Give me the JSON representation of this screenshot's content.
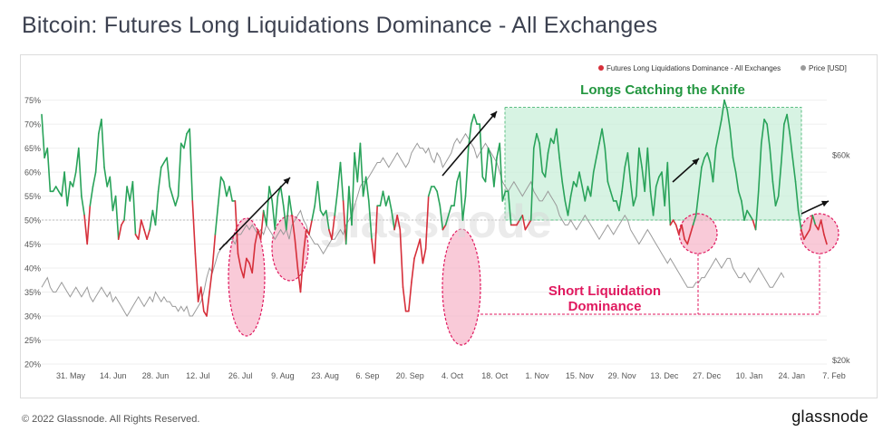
{
  "title": "Bitcoin: Futures Long Liquidations Dominance - All Exchanges",
  "footer": {
    "copyright": "© 2022 Glassnode. All Rights Reserved.",
    "brand": "glassnode"
  },
  "watermark": "glassnode",
  "colors": {
    "series_line": "#d62f3a",
    "long_line": "#29a35a",
    "price_line": "#9a9a9a",
    "highlight_green": "#c9efd9",
    "highlight_pink": "#f7b3c8",
    "annotation_green": "#22963f",
    "annotation_pink": "#e0195f"
  },
  "chart_data": {
    "type": "line",
    "x_ticks": [
      "31. May",
      "14. Jun",
      "28. Jun",
      "12. Jul",
      "26. Jul",
      "9. Aug",
      "23. Aug",
      "6. Sep",
      "20. Sep",
      "4. Oct",
      "18. Oct",
      "1. Nov",
      "15. Nov",
      "29. Nov",
      "13. Dec",
      "27. Dec",
      "10. Jan",
      "24. Jan",
      "7. Feb"
    ],
    "y_ticks": [
      "20%",
      "25%",
      "30%",
      "35%",
      "40%",
      "45%",
      "50%",
      "55%",
      "60%",
      "65%",
      "70%",
      "75%"
    ],
    "ylim": [
      20,
      77
    ],
    "threshold": 50,
    "y2_ticks": [
      "$20k",
      "$60k"
    ],
    "legend": [
      {
        "name": "Futures Long Liquidations Dominance - All Exchanges",
        "color": "#d62f3a"
      },
      {
        "name": "Price [USD]",
        "color": "#9a9a9a"
      }
    ],
    "series": [
      {
        "name": "Futures Long Liquidations Dominance - All Exchanges",
        "values": [
          72,
          63,
          65,
          56,
          56,
          57,
          56,
          55,
          60,
          53,
          58,
          57,
          60,
          65,
          55,
          51,
          45,
          53,
          57,
          60,
          68,
          71,
          61,
          57,
          59,
          52,
          55,
          46,
          49,
          50,
          57,
          54,
          58,
          47,
          46,
          50,
          48,
          46,
          48,
          52,
          49,
          56,
          61,
          62,
          63,
          57,
          55,
          53,
          55,
          66,
          65,
          68,
          69,
          54,
          43,
          33,
          36,
          31,
          30,
          35,
          40,
          47,
          53,
          59,
          58,
          55,
          57,
          54,
          54,
          43,
          40,
          38,
          42,
          41,
          39,
          45,
          48,
          46,
          52,
          49,
          57,
          54,
          48,
          55,
          57,
          53,
          48,
          55,
          51,
          46,
          40,
          35,
          43,
          48,
          47,
          50,
          53,
          58,
          52,
          51,
          52,
          48,
          46,
          51,
          56,
          62,
          54,
          45,
          57,
          49,
          64,
          58,
          66,
          55,
          59,
          54,
          46,
          41,
          53,
          53,
          56,
          53,
          55,
          52,
          48,
          51,
          48,
          36,
          31,
          31,
          37,
          42,
          44,
          46,
          41,
          44,
          55,
          57,
          57,
          56,
          53,
          48,
          49,
          51,
          53,
          53,
          58,
          60,
          50,
          55,
          65,
          70,
          72,
          70,
          70,
          59,
          58,
          65,
          63,
          57,
          63,
          66,
          54,
          56,
          56,
          49,
          49,
          49,
          50,
          51,
          48,
          49,
          50,
          65,
          68,
          66,
          60,
          59,
          64,
          67,
          66,
          69,
          63,
          58,
          54,
          51,
          55,
          58,
          57,
          60,
          57,
          54,
          57,
          55,
          60,
          63,
          66,
          69,
          65,
          58,
          56,
          54,
          54,
          52,
          56,
          61,
          64,
          58,
          53,
          55,
          65,
          61,
          56,
          65,
          56,
          51,
          57,
          59,
          60,
          53,
          62,
          49,
          50,
          49,
          47,
          49,
          46,
          45,
          47,
          49,
          51,
          56,
          61,
          63,
          64,
          62,
          58,
          65,
          68,
          71,
          75,
          73,
          69,
          63,
          60,
          56,
          54,
          50,
          52,
          51,
          50,
          48,
          56,
          66,
          71,
          70,
          65,
          58,
          53,
          55,
          62,
          70,
          72,
          68,
          63,
          58,
          52,
          48,
          46,
          47,
          48,
          51,
          49,
          48,
          50,
          47,
          45
        ]
      },
      {
        "name": "Price [USD]",
        "values": [
          36,
          37,
          38,
          36,
          35,
          35,
          36,
          37,
          36,
          35,
          34,
          35,
          36,
          35,
          34,
          35,
          36,
          34,
          33,
          34,
          35,
          36,
          35,
          34,
          35,
          33,
          34,
          33,
          32,
          31,
          30,
          31,
          32,
          33,
          34,
          33,
          32,
          33,
          34,
          33,
          35,
          34,
          33,
          34,
          33,
          33,
          32,
          32,
          31,
          32,
          31,
          32,
          30,
          30,
          31,
          32,
          33,
          35,
          38,
          40,
          39,
          41,
          43,
          44,
          45,
          45,
          46,
          46,
          45,
          47,
          47,
          48,
          49,
          48,
          49,
          48,
          47,
          48,
          47,
          49,
          48,
          47,
          46,
          47,
          48,
          47,
          48,
          46,
          49,
          50,
          51,
          52,
          50,
          49,
          47,
          46,
          45,
          45,
          44,
          43,
          44,
          45,
          46,
          46,
          47,
          48,
          47,
          49,
          50,
          51,
          53,
          55,
          57,
          58,
          58,
          59,
          60,
          61,
          62,
          62,
          63,
          62,
          61,
          62,
          63,
          64,
          63,
          62,
          61,
          62,
          64,
          65,
          66,
          65,
          65,
          64,
          65,
          63,
          62,
          64,
          63,
          61,
          62,
          63,
          64,
          66,
          67,
          66,
          67,
          68,
          67,
          66,
          65,
          63,
          64,
          65,
          66,
          65,
          64,
          63,
          62,
          60,
          58,
          57,
          56,
          57,
          58,
          57,
          56,
          55,
          56,
          57,
          58,
          56,
          55,
          54,
          54,
          55,
          56,
          55,
          54,
          53,
          51,
          50,
          49,
          49,
          50,
          49,
          48,
          49,
          50,
          51,
          50,
          49,
          48,
          47,
          46,
          47,
          48,
          49,
          48,
          47,
          48,
          49,
          50,
          51,
          50,
          48,
          47,
          46,
          45,
          46,
          47,
          48,
          47,
          46,
          45,
          44,
          43,
          42,
          41,
          42,
          41,
          40,
          39,
          38,
          37,
          36,
          36,
          36,
          37,
          37,
          38,
          38,
          39,
          40,
          41,
          42,
          41,
          40,
          41,
          42,
          42,
          40,
          39,
          38,
          38,
          39,
          38,
          37,
          38,
          39,
          40,
          39,
          38,
          37,
          36,
          36,
          37,
          38,
          39,
          38
        ]
      }
    ],
    "annotations": {
      "long_label": "Longs Catching the Knife",
      "short_label_line1": "Short Liquidation",
      "short_label_line2": "Dominance"
    }
  }
}
